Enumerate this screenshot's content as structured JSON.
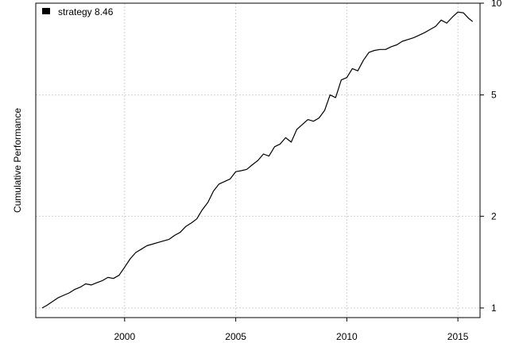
{
  "chart_data": {
    "type": "line",
    "title": "",
    "xlabel": "",
    "ylabel": "Cumulative Performance",
    "y_scale": "log",
    "grid": true,
    "legend_position": "top-left",
    "xlim": [
      "1996-01-01",
      "2015-12-31"
    ],
    "ylim": [
      0.93,
      10
    ],
    "x_ticks": [
      "2000-01-01",
      "2005-01-01",
      "2010-01-01",
      "2015-01-01"
    ],
    "x_tick_labels": [
      "2000",
      "2005",
      "2010",
      "2015"
    ],
    "y_ticks": [
      1,
      2,
      5,
      10
    ],
    "y_tick_labels": [
      "1",
      "2",
      "5",
      "10"
    ],
    "series": [
      {
        "name": "strategy",
        "legend_label": "strategy 8.46",
        "color": "#000000",
        "x": [
          "1996-04-15",
          "1996-07-01",
          "1997-01-01",
          "1997-04-01",
          "1997-07-01",
          "1997-10-01",
          "1998-01-01",
          "1998-04-01",
          "1998-07-01",
          "1998-10-01",
          "1999-01-01",
          "1999-04-01",
          "1999-07-01",
          "1999-10-01",
          "2000-01-01",
          "2000-04-01",
          "2000-07-01",
          "2000-10-01",
          "2001-01-01",
          "2001-04-01",
          "2001-07-01",
          "2001-10-01",
          "2002-01-01",
          "2002-04-01",
          "2002-07-01",
          "2002-10-01",
          "2003-01-01",
          "2003-04-01",
          "2003-07-01",
          "2003-10-01",
          "2004-01-01",
          "2004-04-01",
          "2004-07-01",
          "2004-10-01",
          "2005-01-01",
          "2005-04-01",
          "2005-07-01",
          "2005-10-01",
          "2006-01-01",
          "2006-04-01",
          "2006-07-01",
          "2006-10-01",
          "2007-01-01",
          "2007-04-01",
          "2007-07-01",
          "2007-10-01",
          "2008-01-01",
          "2008-04-01",
          "2008-07-01",
          "2008-10-01",
          "2009-01-01",
          "2009-04-01",
          "2009-07-01",
          "2009-10-01",
          "2010-01-01",
          "2010-04-01",
          "2010-07-01",
          "2010-10-01",
          "2011-01-01",
          "2011-04-01",
          "2011-07-01",
          "2011-10-01",
          "2012-01-01",
          "2012-04-01",
          "2012-07-01",
          "2012-10-01",
          "2013-01-01",
          "2013-04-01",
          "2013-07-01",
          "2013-10-01",
          "2014-01-01",
          "2014-04-01",
          "2014-07-01",
          "2014-10-01",
          "2015-01-01",
          "2015-04-01",
          "2015-07-01",
          "2015-09-01"
        ],
        "y": [
          1.0,
          1.02,
          1.08,
          1.1,
          1.12,
          1.15,
          1.17,
          1.2,
          1.19,
          1.21,
          1.23,
          1.26,
          1.25,
          1.28,
          1.36,
          1.45,
          1.52,
          1.56,
          1.6,
          1.62,
          1.64,
          1.66,
          1.68,
          1.73,
          1.77,
          1.85,
          1.9,
          1.96,
          2.1,
          2.22,
          2.42,
          2.55,
          2.6,
          2.65,
          2.8,
          2.82,
          2.85,
          2.95,
          3.05,
          3.2,
          3.15,
          3.38,
          3.45,
          3.62,
          3.5,
          3.85,
          4.0,
          4.15,
          4.1,
          4.2,
          4.45,
          5.0,
          4.9,
          5.6,
          5.7,
          6.1,
          6.0,
          6.5,
          6.9,
          7.0,
          7.05,
          7.05,
          7.2,
          7.3,
          7.5,
          7.6,
          7.7,
          7.85,
          8.0,
          8.2,
          8.4,
          8.8,
          8.6,
          9.0,
          9.35,
          9.3,
          8.9,
          8.7
        ]
      }
    ]
  }
}
